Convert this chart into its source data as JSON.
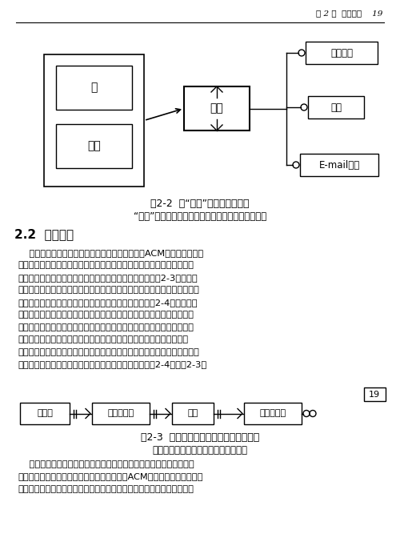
{
  "page_header_text": "第 2 章  责任模式    19",
  "fig22_caption": "图2-2  用“团体”来概括人和组织",
  "fig22_subcaption": "“团体”应该被用于许多使用了个人或组织的情况中。",
  "section_title": "2.2  组织层次",
  "body_text": [
    "    首先我们看一下跨国公司芳香咋啊机制造公司（ACM），它有很多分",
    "公司，每个分公司又分成不同的区域子公司，而每个区域子公司又分成不",
    "同的部门，每个部门又有很多个销售办事处。我们可以用图2-3来模拟这",
    "种结构关系。然而我对该图也不是很满意。因为如果公司的组织发生变化，",
    "比如说去掉了区域子公司划分，我们就必须改变模型。图2-4提供了一个",
    "更简单的模型，该模型可以很容易地加以改变。但该模型的递归关系隐含",
    "着某种危险，比如它允许将部门作为销售办事处的一部分。我们可以通过",
    "定义相应的子类型并对每种子类型施以一定的约束的方式来处理这一问",
    "题。一旦组织层次发生变化，我们可以改变这些子类型和约束规则。通常，",
    "改变规则比改变模型结构要容易得多，所以我倒向于用图2-4取代图2-3。"
  ],
  "fig23_caption": "图2-3  带有显式的上下级关系的组织结构",
  "fig23_subcaption": "这样的一种结构具有柔性，很难重用。",
  "bottom_text": [
    "    上面提到的层次结构具有一定的通用性，但仍然有其局限性。其不足",
    "之处在于它只支持单一的组织层次关系。假讽ACM公司针对每种主要的咋",
    "啊机系列为所属的销售办事处配备一个服务小组，那么这个小组就具有双"
  ],
  "page_num": "19",
  "bg_color": "#ffffff",
  "text_color": "#000000",
  "line_color": "#000000",
  "box_color": "#000000"
}
